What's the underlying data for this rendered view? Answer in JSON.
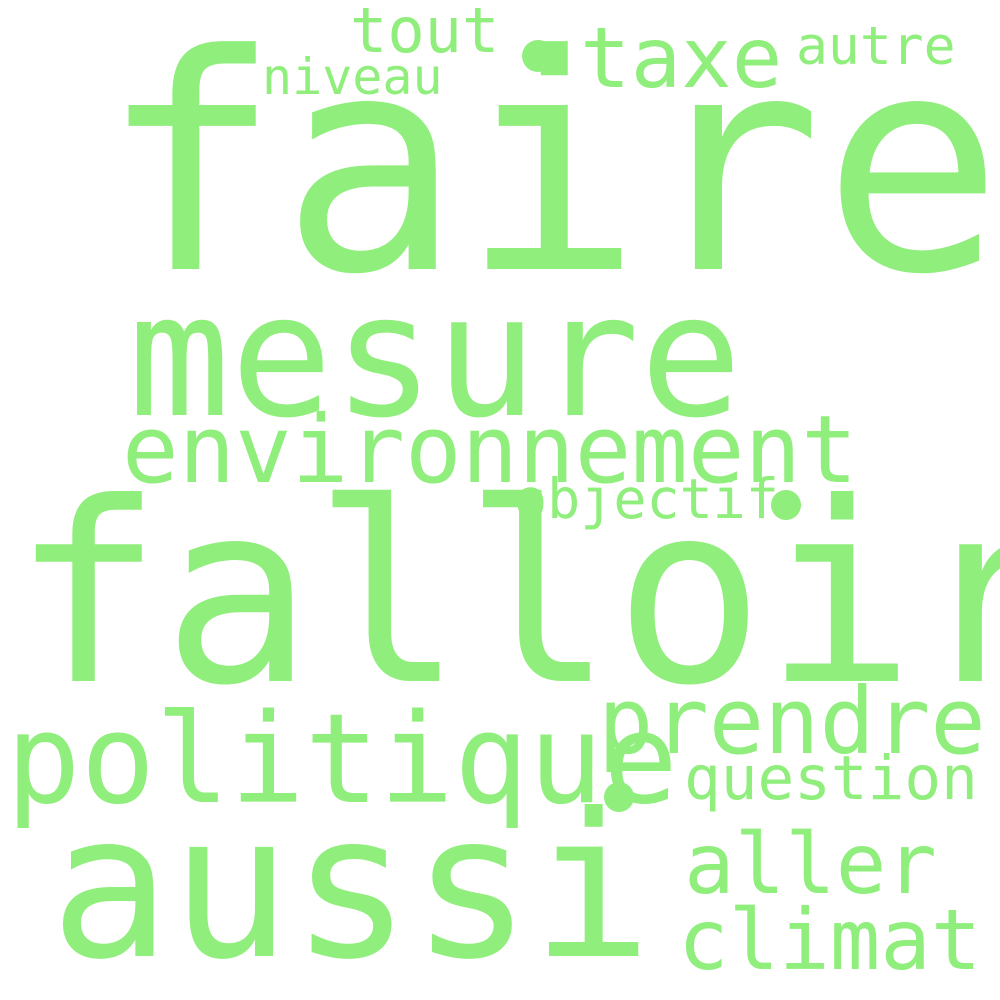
{
  "colors": {
    "background": "#ffffff",
    "word": "#90ee7c"
  },
  "words": {
    "faire": "faire",
    "mesure": "mesure",
    "falloir": "falloir",
    "aussi": "aussi",
    "environnement": "environnement",
    "politique": "politique",
    "prendre": "prendre",
    "question": "question",
    "aller": "aller",
    "climat": "climat",
    "taxe": "taxe",
    "autre": "autre",
    "tout": "tout",
    "niveau": "niveau",
    "objectif": "objectif"
  }
}
